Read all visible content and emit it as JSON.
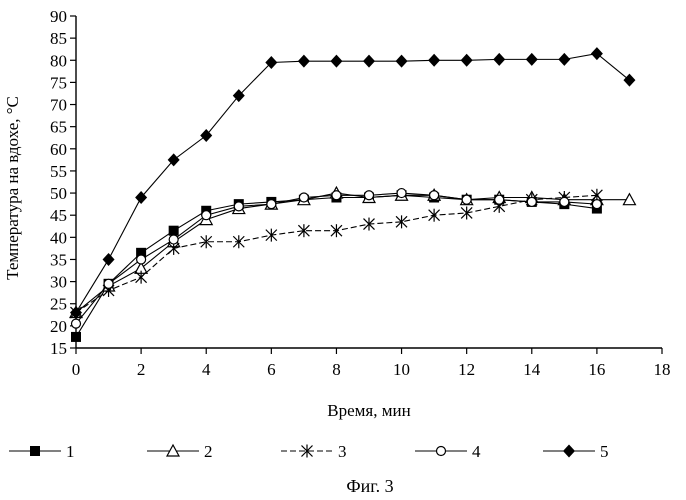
{
  "chart_data": {
    "type": "line",
    "title": "",
    "xlabel": "Время, мин",
    "ylabel": "Температура на вдохе, °С",
    "caption": "Фиг. 3",
    "xlim": [
      0,
      18
    ],
    "ylim": [
      15,
      90
    ],
    "xticks": [
      "0",
      "2",
      "4",
      "6",
      "8",
      "10",
      "12",
      "14",
      "16",
      "18"
    ],
    "yticks": [
      "15",
      "20",
      "25",
      "30",
      "35",
      "40",
      "45",
      "50",
      "55",
      "60",
      "65",
      "70",
      "75",
      "80",
      "85",
      "90"
    ],
    "grid": false,
    "legend_position": "bottom",
    "series": [
      {
        "name": "1",
        "marker": "filled-square",
        "line": "solid",
        "x": [
          0,
          1,
          2,
          3,
          4,
          5,
          6,
          7,
          8,
          9,
          10,
          11,
          12,
          13,
          14,
          15,
          16
        ],
        "y": [
          17.5,
          29.5,
          36.5,
          41.5,
          46,
          47.5,
          48,
          48.5,
          49,
          49,
          49.5,
          49,
          48.5,
          48.5,
          48,
          47.5,
          46.5
        ]
      },
      {
        "name": "2",
        "marker": "open-triangle",
        "line": "solid",
        "x": [
          0,
          1,
          2,
          3,
          4,
          5,
          6,
          7,
          8,
          9,
          10,
          11,
          12,
          13,
          14,
          15,
          16,
          17
        ],
        "y": [
          23,
          29,
          33,
          39,
          44,
          46.5,
          47.5,
          48.5,
          50,
          49,
          49.5,
          49.5,
          48.5,
          49,
          49,
          48.5,
          48.5,
          48.5
        ]
      },
      {
        "name": "3",
        "marker": "asterisk",
        "line": "dashed",
        "x": [
          0,
          1,
          2,
          3,
          4,
          5,
          6,
          7,
          8,
          9,
          10,
          11,
          12,
          13,
          14,
          15,
          16
        ],
        "y": [
          23,
          28,
          31,
          37.5,
          39,
          39,
          40.5,
          41.5,
          41.5,
          43,
          43.5,
          45,
          45.5,
          47,
          48.5,
          49,
          49.5
        ]
      },
      {
        "name": "4",
        "marker": "open-circle",
        "line": "solid",
        "x": [
          0,
          1,
          2,
          3,
          4,
          5,
          6,
          7,
          8,
          9,
          10,
          11,
          12,
          13,
          14,
          15,
          16
        ],
        "y": [
          20.5,
          29.5,
          35,
          39.5,
          45,
          47,
          47.5,
          49,
          49.5,
          49.5,
          50,
          49.5,
          48.5,
          48.5,
          48,
          48,
          47.5
        ]
      },
      {
        "name": "5",
        "marker": "filled-diamond",
        "line": "solid",
        "x": [
          0,
          1,
          2,
          3,
          4,
          5,
          6,
          7,
          8,
          9,
          10,
          11,
          12,
          13,
          14,
          15,
          16,
          17
        ],
        "y": [
          23,
          35,
          49,
          57.5,
          63,
          72,
          79.5,
          79.8,
          79.8,
          79.8,
          79.8,
          80,
          80,
          80.2,
          80.2,
          80.2,
          81.5,
          75.5
        ]
      }
    ]
  }
}
